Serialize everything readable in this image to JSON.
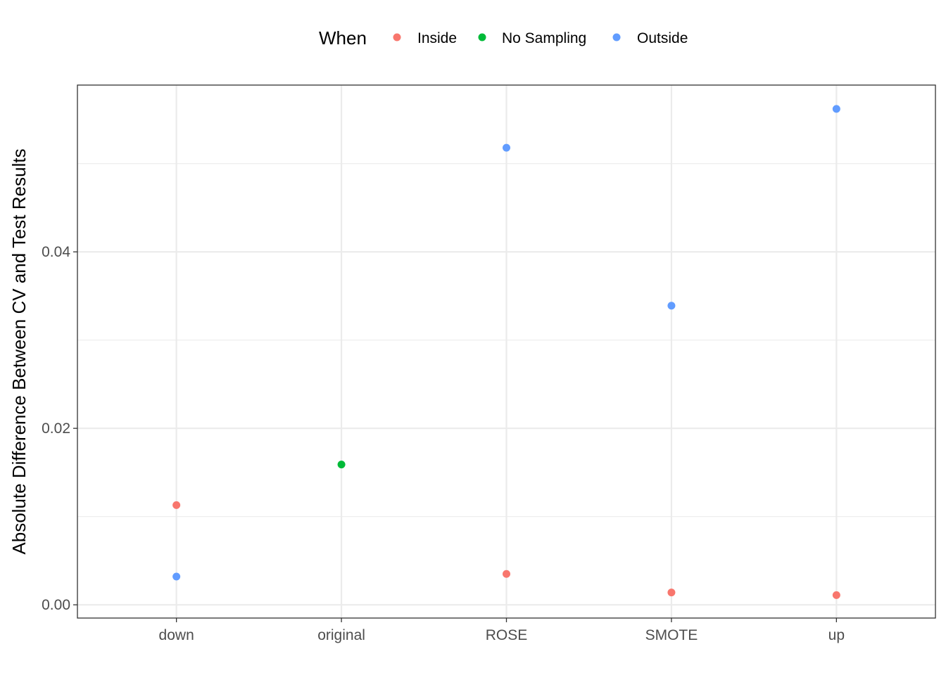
{
  "legend": {
    "title": "When",
    "items": [
      {
        "label": "Inside",
        "color": "#F8766D"
      },
      {
        "label": "No Sampling",
        "color": "#00BA38"
      },
      {
        "label": "Outside",
        "color": "#619CFF"
      }
    ],
    "placement": "top"
  },
  "chart_data": {
    "type": "scatter",
    "title": "",
    "xlabel": "",
    "ylabel": "Absolute Difference Between CV and Test Results",
    "categories": [
      "down",
      "original",
      "ROSE",
      "SMOTE",
      "up"
    ],
    "y_ticks": [
      0.0,
      0.02,
      0.04
    ],
    "y_tick_labels": [
      "0.00",
      "0.02",
      "0.04"
    ],
    "ylim": [
      -0.0015,
      0.0589
    ],
    "grid": true,
    "series": [
      {
        "name": "Inside",
        "color": "#F8766D",
        "points": [
          {
            "x": "down",
            "y": 0.0113
          },
          {
            "x": "ROSE",
            "y": 0.0035
          },
          {
            "x": "SMOTE",
            "y": 0.0014
          },
          {
            "x": "up",
            "y": 0.0011
          }
        ]
      },
      {
        "name": "No Sampling",
        "color": "#00BA38",
        "points": [
          {
            "x": "original",
            "y": 0.0159
          }
        ]
      },
      {
        "name": "Outside",
        "color": "#619CFF",
        "points": [
          {
            "x": "down",
            "y": 0.0032
          },
          {
            "x": "ROSE",
            "y": 0.0518
          },
          {
            "x": "SMOTE",
            "y": 0.0339
          },
          {
            "x": "up",
            "y": 0.0562
          }
        ]
      }
    ]
  }
}
